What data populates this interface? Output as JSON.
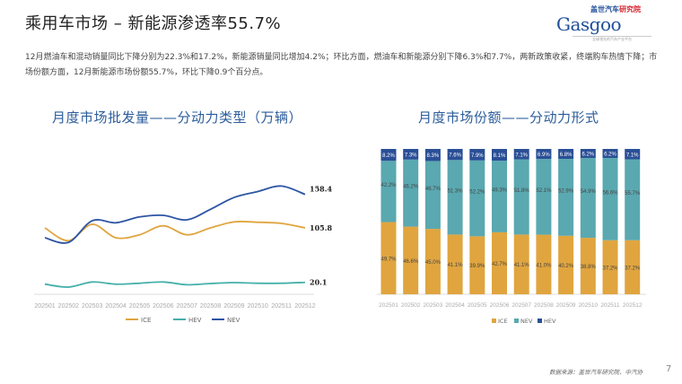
{
  "header": {
    "title": "乘用车市场 – 新能源渗透率55.7%",
    "logo": {
      "cn_part1": "盖世汽车",
      "cn_part2": "研究院",
      "en": "Gasgoo",
      "tagline": "全球领先的汽车产业平台"
    }
  },
  "summary": "12月燃油车和混动销量同比下降分别为22.3%和17.2%，新能源销量同比增加4.2%；环比方面，燃油车和新能源分别下降6.3%和7.7%，两新政策收紧，终端购车热情下降；市场份额方面，12月新能源市场份额55.7%，环比下降0.9个百分点。",
  "colors": {
    "ICE": "#e0a53f",
    "HEV": "#45b0aa",
    "NEV": "#2d55a3",
    "NEV_share": "#5aa8b0",
    "HEV_share": "#2a4f96",
    "title_blue": "#2b5c9a"
  },
  "chart_data": [
    {
      "type": "line",
      "title": "月度市场批发量——分动力类型（万辆）",
      "categories": [
        "202501",
        "202502",
        "202503",
        "202504",
        "202505",
        "202506",
        "202507",
        "202508",
        "202509",
        "202510",
        "202511",
        "202512"
      ],
      "series": [
        {
          "name": "ICE",
          "values": [
            105.8,
            85.6,
            111.4,
            90.2,
            94.9,
            109.0,
            94.9,
            105.8,
            115.2,
            114.7,
            112.8,
            105.8
          ]
        },
        {
          "name": "HEV",
          "values": [
            17.3,
            12.7,
            20.7,
            17.3,
            18.7,
            20.7,
            16.4,
            18.3,
            19.7,
            18.7,
            18.7,
            20.1
          ]
        },
        {
          "name": "NEV",
          "values": [
            90.2,
            83.0,
            117.0,
            113.8,
            123.0,
            125.5,
            118.5,
            135.0,
            153.7,
            163.0,
            171.6,
            158.4
          ]
        }
      ],
      "end_labels": [
        "105.8",
        "20.1",
        "158.4"
      ],
      "legend": "bottom",
      "grid": false
    },
    {
      "type": "stacked-bar",
      "title": "月度市场份额——分动力形式",
      "categories": [
        "202501",
        "202502",
        "202503",
        "202504",
        "202505",
        "202506",
        "202507",
        "202508",
        "202509",
        "202510",
        "202511",
        "202512"
      ],
      "series": [
        {
          "name": "ICE",
          "values": [
            49.7,
            46.6,
            45.0,
            41.1,
            39.9,
            42.7,
            41.1,
            41.0,
            40.2,
            38.8,
            37.2,
            37.2
          ]
        },
        {
          "name": "NEV",
          "values": [
            42.2,
            46.2,
            46.7,
            51.3,
            52.2,
            49.3,
            51.8,
            52.1,
            52.9,
            54.9,
            56.6,
            55.7
          ]
        },
        {
          "name": "HEV",
          "values": [
            8.2,
            7.3,
            8.3,
            7.6,
            7.9,
            8.1,
            7.1,
            6.9,
            6.8,
            6.2,
            6.2,
            7.1
          ]
        }
      ],
      "unit": "%",
      "legend": "bottom",
      "grid": false
    }
  ],
  "footer": {
    "source": "数据来源：盖世汽车研究院、中汽协",
    "page": "7"
  }
}
